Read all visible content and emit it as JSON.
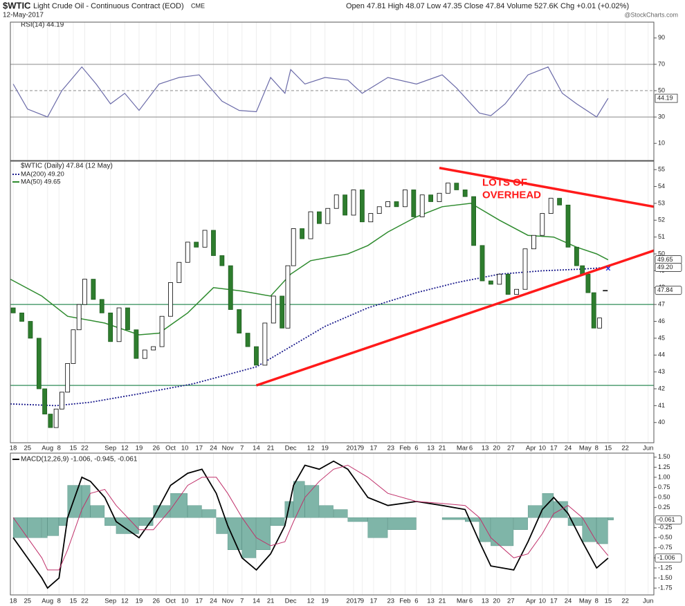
{
  "header": {
    "symbol": "$WTIC",
    "name": "Light Crude Oil - Continuous Contract (EOD)",
    "exchange": "CME",
    "date": "12-May-2017",
    "quote": "Open 47.81 High 48.07 Low 47.35 Close 47.84 Volume 527.6K Chg +0.01 (+0.02%)",
    "credit": "@StockCharts.com"
  },
  "chart_data": [
    {
      "type": "line",
      "series": [
        {
          "name": "RSI(14) 44.19",
          "color": "#6a6aa8",
          "x": [
            0,
            5,
            12,
            17,
            24,
            29,
            34,
            39,
            44,
            51,
            58,
            65,
            73,
            79,
            85,
            90,
            95,
            97,
            102,
            109,
            117,
            122,
            131,
            141,
            150,
            155,
            163,
            167,
            172,
            180,
            187,
            192,
            197,
            204,
            208
          ],
          "values": [
            55,
            36,
            30,
            50,
            68,
            55,
            40,
            48,
            35,
            55,
            60,
            62,
            42,
            35,
            34,
            60,
            48,
            66,
            55,
            60,
            58,
            48,
            60,
            55,
            62,
            52,
            33,
            31,
            40,
            62,
            68,
            48,
            40,
            30,
            44.19
          ]
        }
      ],
      "ylim": [
        -3,
        102
      ],
      "yticks": [
        10,
        30,
        50,
        70,
        90
      ],
      "hlines": [
        70,
        50,
        30
      ],
      "end_label": {
        "value": 44.19,
        "label": "44.19"
      }
    },
    {
      "type": "candlestick",
      "title": "$WTIC (Daily) 47.84 (12 May)",
      "x": [
        0,
        3,
        6,
        9,
        11,
        13,
        15,
        17,
        19,
        21,
        23,
        25,
        28,
        31,
        34,
        37,
        40,
        43,
        46,
        49,
        52,
        55,
        58,
        61,
        64,
        67,
        70,
        73,
        76,
        79,
        82,
        85,
        88,
        91,
        94,
        96,
        98,
        101,
        104,
        107,
        110,
        113,
        116,
        119,
        122,
        125,
        128,
        131,
        134,
        137,
        140,
        143,
        146,
        149,
        152,
        155,
        158,
        161,
        164,
        167,
        170,
        173,
        176,
        179,
        182,
        185,
        188,
        191,
        194,
        197,
        199,
        201,
        203,
        205,
        207
      ],
      "open": [
        46.8,
        46.5,
        46,
        45,
        42,
        40.5,
        39.7,
        40.8,
        41.8,
        43.5,
        45.5,
        47,
        48.5,
        47.3,
        46.5,
        44.8,
        46.8,
        45.5,
        43.8,
        44.3,
        44.5,
        46.3,
        48.3,
        49.5,
        50.7,
        50.4,
        51.4,
        49.9,
        49.3,
        46.7,
        45.3,
        44.5,
        43.4,
        45.9,
        47.5,
        45.6,
        49.3,
        51.5,
        50.9,
        52.5,
        51.8,
        52.7,
        53.5,
        52.3,
        53.8,
        51.9,
        52.4,
        52.8,
        53.1,
        52.8,
        53.8,
        52.2,
        53.5,
        53.1,
        53.6,
        54.2,
        53.8,
        53.4,
        50.5,
        48.4,
        48.2,
        48.8,
        47.6,
        47.9,
        50.3,
        51.1,
        52.4,
        53.3,
        52.9,
        50.4,
        49.3,
        48.8,
        47.7,
        45.6,
        47.81
      ],
      "close": [
        46.5,
        46,
        45,
        42,
        40.5,
        39.7,
        40.8,
        41.8,
        43.5,
        45.5,
        47,
        48.5,
        47.3,
        46.5,
        44.8,
        46.8,
        45.5,
        43.8,
        44.3,
        44.5,
        46.3,
        48.3,
        49.5,
        50.7,
        50.4,
        51.4,
        49.9,
        49.3,
        46.7,
        45.3,
        44.5,
        43.4,
        45.9,
        47.5,
        45.6,
        49.3,
        51.5,
        50.9,
        52.5,
        51.8,
        52.7,
        53.5,
        52.3,
        53.8,
        51.9,
        52.4,
        52.8,
        53.1,
        52.8,
        53.8,
        52.2,
        53.5,
        53.1,
        53.6,
        54.2,
        53.8,
        53.4,
        50.5,
        48.4,
        48.2,
        48.8,
        47.6,
        47.9,
        50.3,
        51.1,
        52.4,
        53.3,
        52.9,
        50.4,
        49.3,
        48.8,
        47.7,
        45.6,
        46.2,
        47.84
      ],
      "series": [
        {
          "name": "MA(200) 49.20",
          "color": "#1a1a8c",
          "dashed": true,
          "x": [
            -1,
            15,
            27,
            44,
            63,
            85,
            97,
            109,
            124,
            141,
            155,
            170,
            185,
            199,
            208
          ],
          "values": [
            41.1,
            41,
            41.2,
            41.7,
            42.3,
            43.3,
            44.5,
            45.7,
            46.8,
            47.7,
            48.3,
            48.8,
            49,
            49.1,
            49.2
          ]
        },
        {
          "name": "MA(50) 49.65",
          "color": "#2e8b2e",
          "dashed": false,
          "x": [
            -1,
            10,
            19,
            32,
            44,
            51,
            61,
            70,
            80,
            90,
            97,
            104,
            117,
            124,
            131,
            141,
            150,
            160,
            170,
            180,
            189,
            197,
            204,
            208
          ],
          "values": [
            48.5,
            47.5,
            46.3,
            45.9,
            45.2,
            45.3,
            46.5,
            48,
            47.8,
            47.5,
            48.8,
            49.6,
            50,
            50.5,
            51.3,
            52.2,
            52.8,
            53,
            52,
            51.1,
            51,
            50.4,
            50,
            49.65
          ]
        }
      ],
      "xlim": [
        -1,
        224
      ],
      "ylim": [
        38.8,
        55.5
      ],
      "yticks": [
        40,
        41,
        42,
        43,
        44,
        45,
        46,
        47,
        48,
        49,
        50,
        51,
        52,
        53,
        54,
        55
      ],
      "xticks": [
        {
          "value": 0,
          "label": "18"
        },
        {
          "value": 5,
          "label": "25"
        },
        {
          "value": 12,
          "label": "Aug"
        },
        {
          "value": 16,
          "label": "8"
        },
        {
          "value": 21,
          "label": "15"
        },
        {
          "value": 25,
          "label": "22"
        },
        {
          "value": 34,
          "label": "Sep"
        },
        {
          "value": 39,
          "label": "12"
        },
        {
          "value": 44,
          "label": "19"
        },
        {
          "value": 50,
          "label": "26"
        },
        {
          "value": 55,
          "label": "Oct"
        },
        {
          "value": 60,
          "label": "10"
        },
        {
          "value": 65,
          "label": "17"
        },
        {
          "value": 70,
          "label": "24"
        },
        {
          "value": 75,
          "label": "Nov"
        },
        {
          "value": 80,
          "label": "7"
        },
        {
          "value": 85,
          "label": "14"
        },
        {
          "value": 90,
          "label": "21"
        },
        {
          "value": 97,
          "label": "Dec"
        },
        {
          "value": 104,
          "label": "12"
        },
        {
          "value": 109,
          "label": "19"
        },
        {
          "value": 119,
          "label": "2017"
        },
        {
          "value": 122,
          "label": "9"
        },
        {
          "value": 126,
          "label": "17"
        },
        {
          "value": 132,
          "label": "23"
        },
        {
          "value": 137,
          "label": "Feb"
        },
        {
          "value": 141,
          "label": "6"
        },
        {
          "value": 146,
          "label": "13"
        },
        {
          "value": 150,
          "label": "21"
        },
        {
          "value": 157,
          "label": "Mar"
        },
        {
          "value": 160,
          "label": "6"
        },
        {
          "value": 165,
          "label": "13"
        },
        {
          "value": 169,
          "label": "20"
        },
        {
          "value": 174,
          "label": "27"
        },
        {
          "value": 181,
          "label": "Apr"
        },
        {
          "value": 185,
          "label": "10"
        },
        {
          "value": 189,
          "label": "17"
        },
        {
          "value": 194,
          "label": "24"
        },
        {
          "value": 200,
          "label": "May"
        },
        {
          "value": 204,
          "label": "8"
        },
        {
          "value": 208,
          "label": "15"
        },
        {
          "value": 214,
          "label": "22"
        },
        {
          "value": 222,
          "label": "Jun"
        }
      ],
      "end_labels": [
        {
          "value": 49.65,
          "label": "49.65"
        },
        {
          "value": 49.2,
          "label": "49.20"
        },
        {
          "value": 47.84,
          "label": "47.84"
        }
      ],
      "hlines": [
        47,
        42.2
      ],
      "hline_color": "#2e8b57",
      "trendlines": [
        {
          "x": [
            85,
            224
          ],
          "y": [
            42.2,
            50.2
          ]
        },
        {
          "x": [
            149,
            224
          ],
          "y": [
            55.1,
            52.8
          ]
        }
      ],
      "trend_color": "#ff1a1a",
      "marker": {
        "x": 208,
        "y": 49.1
      },
      "annotation": {
        "x": 164,
        "y": 54.2,
        "lines": [
          "LOTS OF",
          "OVERHEAD"
        ]
      }
    },
    {
      "type": "macd",
      "title": "MACD(12,26,9) -1.006, -0.945, -0.061",
      "x": [
        0,
        5,
        10,
        12,
        16,
        19,
        24,
        27,
        32,
        36,
        44,
        49,
        55,
        61,
        66,
        71,
        75,
        80,
        85,
        90,
        95,
        98,
        102,
        107,
        112,
        117,
        124,
        131,
        141,
        150,
        158,
        163,
        167,
        175,
        180,
        185,
        189,
        194,
        199,
        204,
        208
      ],
      "series": [
        {
          "color": "#000000",
          "values": [
            -0.5,
            -1.0,
            -1.5,
            -1.75,
            -1.5,
            0,
            1.0,
            0.9,
            0.5,
            -0.1,
            -0.5,
            0,
            0.8,
            1.1,
            1.2,
            0.6,
            -0.2,
            -1.0,
            -1.3,
            -0.9,
            -0.2,
            0.8,
            1.3,
            1.2,
            1.4,
            1.2,
            0.5,
            0.3,
            0.4,
            0.3,
            0.2,
            -0.6,
            -1.2,
            -1.3,
            -0.6,
            0.2,
            0.5,
            0.1,
            -0.6,
            -1.25,
            -1.006
          ]
        },
        {
          "color": "#c0306a",
          "values": [
            0,
            -0.5,
            -1.0,
            -1.3,
            -1.3,
            -0.8,
            0.2,
            0.6,
            0.7,
            0.3,
            -0.3,
            -0.3,
            0.2,
            0.8,
            1.0,
            1.0,
            0.6,
            0,
            -0.5,
            -0.7,
            -0.6,
            -0.1,
            0.5,
            0.9,
            1.2,
            1.3,
            1.0,
            0.6,
            0.4,
            0.35,
            0.3,
            0.0,
            -0.5,
            -1.0,
            -0.9,
            -0.4,
            0.1,
            0.3,
            0.0,
            -0.6,
            -0.945
          ]
        }
      ],
      "histogram": {
        "color": "#7fb5a8",
        "values": [
          -0.5,
          -0.5,
          -0.5,
          -0.45,
          -0.2,
          0.8,
          0.8,
          0.3,
          -0.2,
          -0.4,
          -0.2,
          0.3,
          0.6,
          0.3,
          0.2,
          -0.4,
          -0.8,
          -1.0,
          -0.8,
          -0.2,
          0.4,
          0.9,
          0.8,
          0.3,
          0.2,
          -0.1,
          -0.5,
          -0.3,
          0,
          -0.05,
          -0.1,
          -0.6,
          -0.7,
          -0.3,
          0.3,
          0.6,
          0.4,
          -0.2,
          -0.6,
          -0.65,
          -0.061
        ]
      },
      "ylim": [
        -1.92,
        1.6
      ],
      "yticks": [
        {
          "value": 1.5,
          "label": "1.50"
        },
        {
          "value": 1.25,
          "label": "1.25"
        },
        {
          "value": 1,
          "label": "1.00"
        },
        {
          "value": 0.75,
          "label": "0.75"
        },
        {
          "value": 0.5,
          "label": "0.50"
        },
        {
          "value": 0.25,
          "label": "0.25"
        },
        {
          "value": -0.25,
          "label": "-0.25"
        },
        {
          "value": -0.5,
          "label": "-0.50"
        },
        {
          "value": -0.75,
          "label": "-0.75"
        },
        {
          "value": -1,
          "label": "-1.00"
        },
        {
          "value": -1.25,
          "label": "-1.25"
        },
        {
          "value": -1.5,
          "label": "-1.50"
        },
        {
          "value": -1.75,
          "label": "-1.75"
        }
      ],
      "end_labels": [
        {
          "value": -0.061,
          "label": "-0.061"
        },
        {
          "value": -1.006,
          "label": "-1.006"
        }
      ]
    }
  ]
}
